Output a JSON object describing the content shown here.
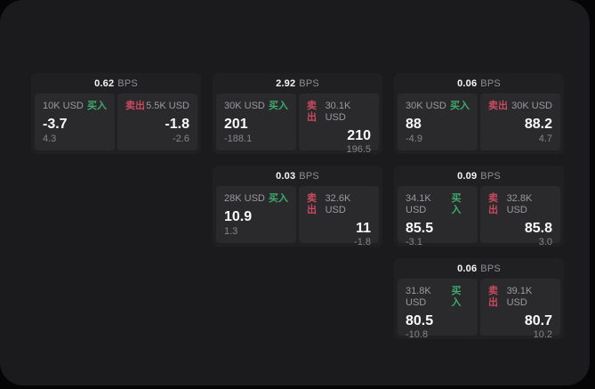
{
  "labels": {
    "buy": "买入",
    "sell": "卖出",
    "bps_unit": "BPS"
  },
  "colors": {
    "page_bg": "#050505",
    "panel_bg": "#1b1b1d",
    "card_bg": "#202022",
    "tile_bg": "#2a2a2c",
    "buy_green": "#3dab6d",
    "sell_red": "#c94a5e",
    "text_primary": "#f5f5f7",
    "text_muted": "#8e8e93"
  },
  "cards": [
    {
      "spread": "0.62",
      "row": 1,
      "col": 1,
      "buy": {
        "size": "10K USD",
        "price": "-3.7",
        "change": "4.3"
      },
      "sell": {
        "size": "5.5K USD",
        "price": "-1.8",
        "change": "-2.6"
      }
    },
    {
      "spread": "2.92",
      "row": 1,
      "col": 2,
      "buy": {
        "size": "30K USD",
        "price": "201",
        "change": "-188.1"
      },
      "sell": {
        "size": "30.1K USD",
        "price": "210",
        "change": "196.5"
      }
    },
    {
      "spread": "0.06",
      "row": 1,
      "col": 3,
      "buy": {
        "size": "30K USD",
        "price": "88",
        "change": "-4.9"
      },
      "sell": {
        "size": "30K USD",
        "price": "88.2",
        "change": "4.7"
      }
    },
    {
      "spread": "0.03",
      "row": 2,
      "col": 2,
      "buy": {
        "size": "28K USD",
        "price": "10.9",
        "change": "1.3"
      },
      "sell": {
        "size": "32.6K USD",
        "price": "11",
        "change": "-1.8"
      }
    },
    {
      "spread": "0.09",
      "row": 2,
      "col": 3,
      "buy": {
        "size": "34.1K USD",
        "price": "85.5",
        "change": "-3.1"
      },
      "sell": {
        "size": "32.8K USD",
        "price": "85.8",
        "change": "3.0"
      }
    },
    {
      "spread": "0.06",
      "row": 3,
      "col": 3,
      "buy": {
        "size": "31.8K USD",
        "price": "80.5",
        "change": "-10.8"
      },
      "sell": {
        "size": "39.1K USD",
        "price": "80.7",
        "change": "10.2"
      }
    }
  ]
}
